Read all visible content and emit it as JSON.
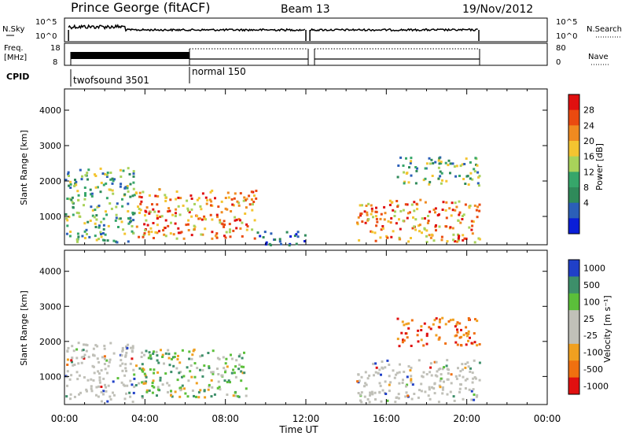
{
  "header": {
    "site": "Prince George (fitACF)",
    "beam": "Beam 13",
    "date": "19/Nov/2012"
  },
  "status_panels": {
    "nsky_label": "N.Sky",
    "nsky_ticks": [
      "10^5",
      "10^0"
    ],
    "nsearch_label": "N.Search",
    "nsearch_ticks": [
      "10^5",
      "10^0"
    ],
    "freq_label_1": "Freq.",
    "freq_label_2": "[MHz]",
    "freq_ticks": [
      "18",
      "8"
    ],
    "nave_label": "Nave",
    "nave_ticks": [
      "80",
      "0"
    ],
    "cpid_label": "CPID",
    "cpid_modes": [
      {
        "name": "twofsound 3501",
        "start_h": 0,
        "end_h": 6
      },
      {
        "name": "normal 150",
        "start_h": 6,
        "end_h": 20.6
      }
    ]
  },
  "colors": {
    "power": [
      "#0a1ed8",
      "#2b5fb8",
      "#2f8a5a",
      "#36a66a",
      "#a8d25a",
      "#f4c430",
      "#f08a20",
      "#ea4a10",
      "#e01010"
    ],
    "velocity": [
      "#2040c8",
      "#3d8f6a",
      "#5bbf3a",
      "#c0c0b8",
      "#c0c0b8",
      "#f0a020",
      "#f07010",
      "#e01010"
    ]
  },
  "chart_data": [
    {
      "type": "heatmap",
      "xlabel": "Time UT",
      "ylabel": "Slant Range [km]",
      "x_ticks": [
        "00:00",
        "04:00",
        "08:00",
        "12:00",
        "16:00",
        "20:00",
        "00:00"
      ],
      "xlim": [
        0,
        24
      ],
      "ylim": [
        200,
        4600
      ],
      "y_ticks": [
        1000,
        2000,
        3000,
        4000
      ],
      "colorbar": {
        "label": "Power [dB]",
        "ticks": [
          "4",
          "8",
          "12",
          "16",
          "20",
          "24",
          "28"
        ],
        "range": [
          0,
          30
        ]
      },
      "data_gaps_h": [
        [
          12.0,
          12.2
        ],
        [
          20.6,
          24
        ]
      ],
      "echo_regions": [
        {
          "t_start": 0,
          "t_end": 3.5,
          "range_lo": 300,
          "range_hi": 2400,
          "level": "medium"
        },
        {
          "t_start": 3.5,
          "t_end": 9.5,
          "range_lo": 400,
          "range_hi": 1800,
          "level": "high"
        },
        {
          "t_start": 9.5,
          "t_end": 12,
          "range_lo": 200,
          "range_hi": 600,
          "level": "low"
        },
        {
          "t_start": 14.5,
          "t_end": 20.6,
          "range_lo": 300,
          "range_hi": 1500,
          "level": "high"
        },
        {
          "t_start": 16.5,
          "t_end": 20.6,
          "range_lo": 1900,
          "range_hi": 2700,
          "level": "medium"
        }
      ]
    },
    {
      "type": "heatmap",
      "xlabel": "Time UT",
      "ylabel": "Slant Range [km]",
      "x_ticks": [
        "00:00",
        "04:00",
        "08:00",
        "12:00",
        "16:00",
        "20:00",
        "00:00"
      ],
      "xlim": [
        0,
        24
      ],
      "ylim": [
        200,
        4600
      ],
      "y_ticks": [
        1000,
        2000,
        3000,
        4000
      ],
      "colorbar": {
        "label": "Velocity [m s⁻¹]",
        "ticks": [
          "1000",
          "500",
          "100",
          "25",
          "-25",
          "-100",
          "-500",
          "-1000"
        ],
        "range": [
          -1000,
          1000
        ]
      },
      "data_gaps_h": [
        [
          12.0,
          12.2
        ],
        [
          20.6,
          24
        ]
      ],
      "echo_regions": [
        {
          "t_start": 0,
          "t_end": 3.5,
          "range_lo": 300,
          "range_hi": 2000,
          "level": "near-zero"
        },
        {
          "t_start": 3.5,
          "t_end": 9.0,
          "range_lo": 400,
          "range_hi": 1800,
          "level": "positive"
        },
        {
          "t_start": 14.5,
          "t_end": 20.6,
          "range_lo": 300,
          "range_hi": 1500,
          "level": "near-zero"
        },
        {
          "t_start": 16.5,
          "t_end": 20.6,
          "range_lo": 1900,
          "range_hi": 2700,
          "level": "negative"
        }
      ]
    }
  ]
}
